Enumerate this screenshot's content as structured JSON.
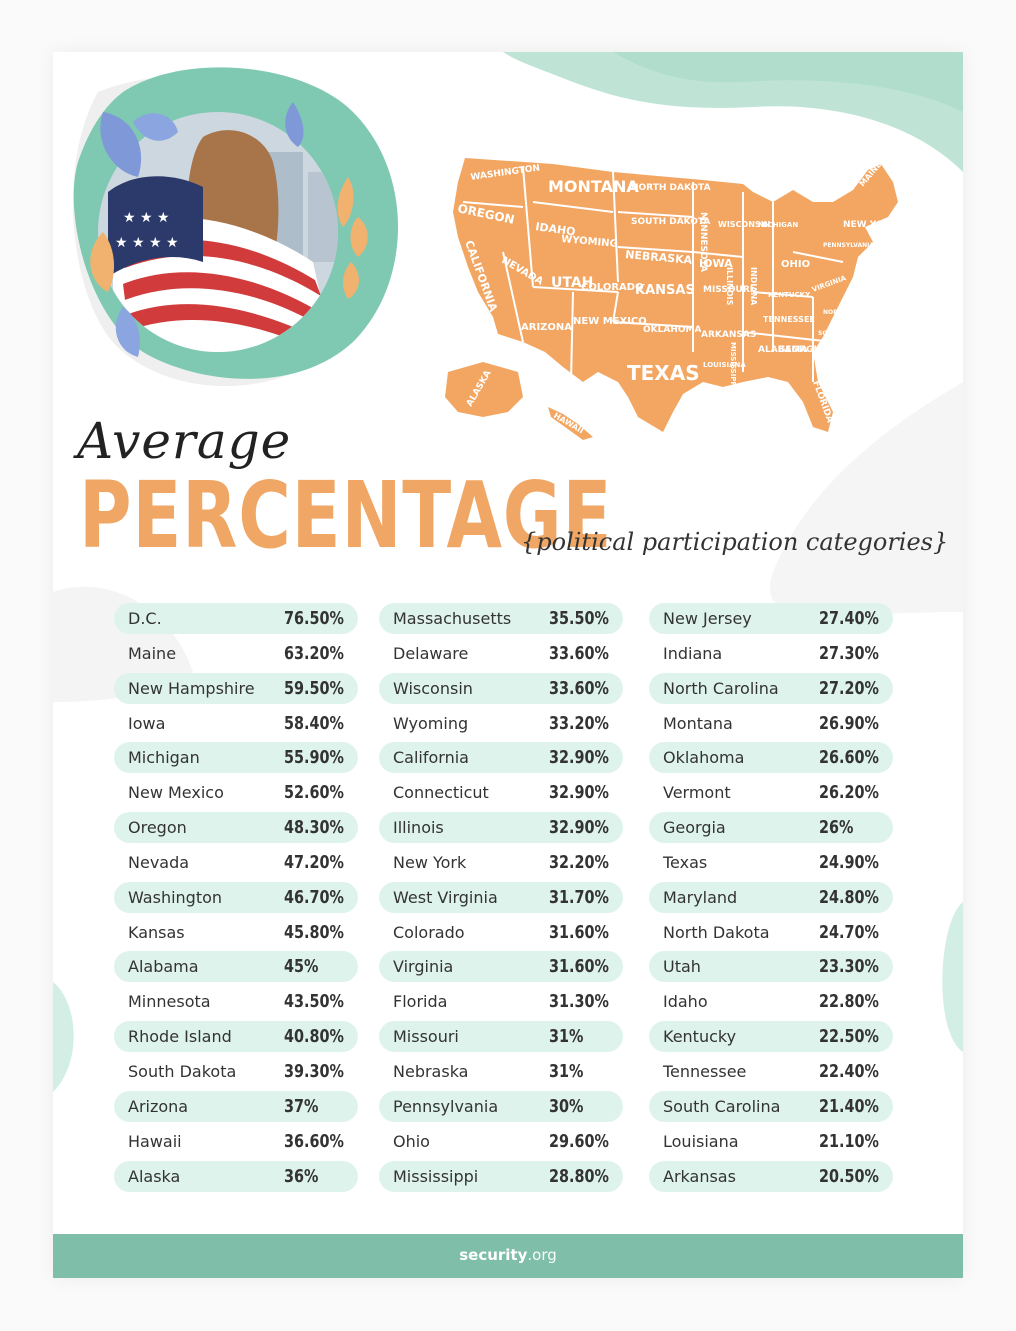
{
  "title": {
    "line1": "Average",
    "line2": "PERCENTAGE",
    "subtitle": "{political participation categories}"
  },
  "colors": {
    "accent_orange": "#f0a765",
    "mint": "#dff3ed",
    "teal": "#7fbfa9"
  },
  "map_labels": [
    "WASHINGTON",
    "OREGON",
    "IDAHO",
    "MONTANA",
    "WYOMING",
    "NORTH DAKOTA",
    "SOUTH DAKOTA",
    "NEBRASKA",
    "CALIFORNIA",
    "NEVADA",
    "UTAH",
    "COLORADO",
    "KANSAS",
    "ARIZONA",
    "NEW MEXICO",
    "OKLAHOMA",
    "TEXAS",
    "MINNESOTA",
    "IOWA",
    "MISSOURI",
    "ARKANSAS",
    "LOUISIANA",
    "WISCONSIN",
    "ILLINOIS",
    "MISSISSIPPI",
    "MICHIGAN",
    "INDIANA",
    "OHIO",
    "KENTUCKY",
    "TENNESSEE",
    "ALABAMA",
    "GEORGIA",
    "FLORIDA",
    "NEW YORK",
    "PENNSYLVANIA",
    "VIRGINIA",
    "NORTH CAROLINA",
    "SOUTH CAROLINA",
    "MAINE",
    "ALASKA",
    "HAWAII"
  ],
  "columns": [
    [
      {
        "state": "D.C.",
        "pct": "76.50%"
      },
      {
        "state": "Maine",
        "pct": "63.20%"
      },
      {
        "state": "New Hampshire",
        "pct": "59.50%"
      },
      {
        "state": "Iowa",
        "pct": "58.40%"
      },
      {
        "state": "Michigan",
        "pct": "55.90%"
      },
      {
        "state": "New Mexico",
        "pct": "52.60%"
      },
      {
        "state": "Oregon",
        "pct": "48.30%"
      },
      {
        "state": "Nevada",
        "pct": "47.20%"
      },
      {
        "state": "Washington",
        "pct": "46.70%"
      },
      {
        "state": "Kansas",
        "pct": "45.80%"
      },
      {
        "state": "Alabama",
        "pct": "45%"
      },
      {
        "state": "Minnesota",
        "pct": "43.50%"
      },
      {
        "state": "Rhode Island",
        "pct": "40.80%"
      },
      {
        "state": "South Dakota",
        "pct": "39.30%"
      },
      {
        "state": "Arizona",
        "pct": "37%"
      },
      {
        "state": "Hawaii",
        "pct": "36.60%"
      },
      {
        "state": "Alaska",
        "pct": "36%"
      }
    ],
    [
      {
        "state": "Massachusetts",
        "pct": "35.50%"
      },
      {
        "state": "Delaware",
        "pct": "33.60%"
      },
      {
        "state": "Wisconsin",
        "pct": "33.60%"
      },
      {
        "state": "Wyoming",
        "pct": "33.20%"
      },
      {
        "state": "California",
        "pct": "32.90%"
      },
      {
        "state": "Connecticut",
        "pct": "32.90%"
      },
      {
        "state": "Illinois",
        "pct": "32.90%"
      },
      {
        "state": "New York",
        "pct": "32.20%"
      },
      {
        "state": "West Virginia",
        "pct": "31.70%"
      },
      {
        "state": "Colorado",
        "pct": "31.60%"
      },
      {
        "state": "Virginia",
        "pct": "31.60%"
      },
      {
        "state": "Florida",
        "pct": "31.30%"
      },
      {
        "state": "Missouri",
        "pct": "31%"
      },
      {
        "state": "Nebraska",
        "pct": "31%"
      },
      {
        "state": "Pennsylvania",
        "pct": "30%"
      },
      {
        "state": "Ohio",
        "pct": "29.60%"
      },
      {
        "state": "Mississippi",
        "pct": "28.80%"
      }
    ],
    [
      {
        "state": "New Jersey",
        "pct": "27.40%"
      },
      {
        "state": "Indiana",
        "pct": "27.30%"
      },
      {
        "state": "North Carolina",
        "pct": "27.20%"
      },
      {
        "state": "Montana",
        "pct": "26.90%"
      },
      {
        "state": "Oklahoma",
        "pct": "26.60%"
      },
      {
        "state": "Vermont",
        "pct": "26.20%"
      },
      {
        "state": "Georgia",
        "pct": "26%"
      },
      {
        "state": "Texas",
        "pct": "24.90%"
      },
      {
        "state": "Maryland",
        "pct": "24.80%"
      },
      {
        "state": "North Dakota",
        "pct": "24.70%"
      },
      {
        "state": "Utah",
        "pct": "23.30%"
      },
      {
        "state": "Idaho",
        "pct": "22.80%"
      },
      {
        "state": "Kentucky",
        "pct": "22.50%"
      },
      {
        "state": "Tennessee",
        "pct": "22.40%"
      },
      {
        "state": "South Carolina",
        "pct": "21.40%"
      },
      {
        "state": "Louisiana",
        "pct": "21.10%"
      },
      {
        "state": "Arkansas",
        "pct": "20.50%"
      }
    ]
  ],
  "footer": {
    "brand_bold": "security",
    "brand_rest": ".org"
  }
}
